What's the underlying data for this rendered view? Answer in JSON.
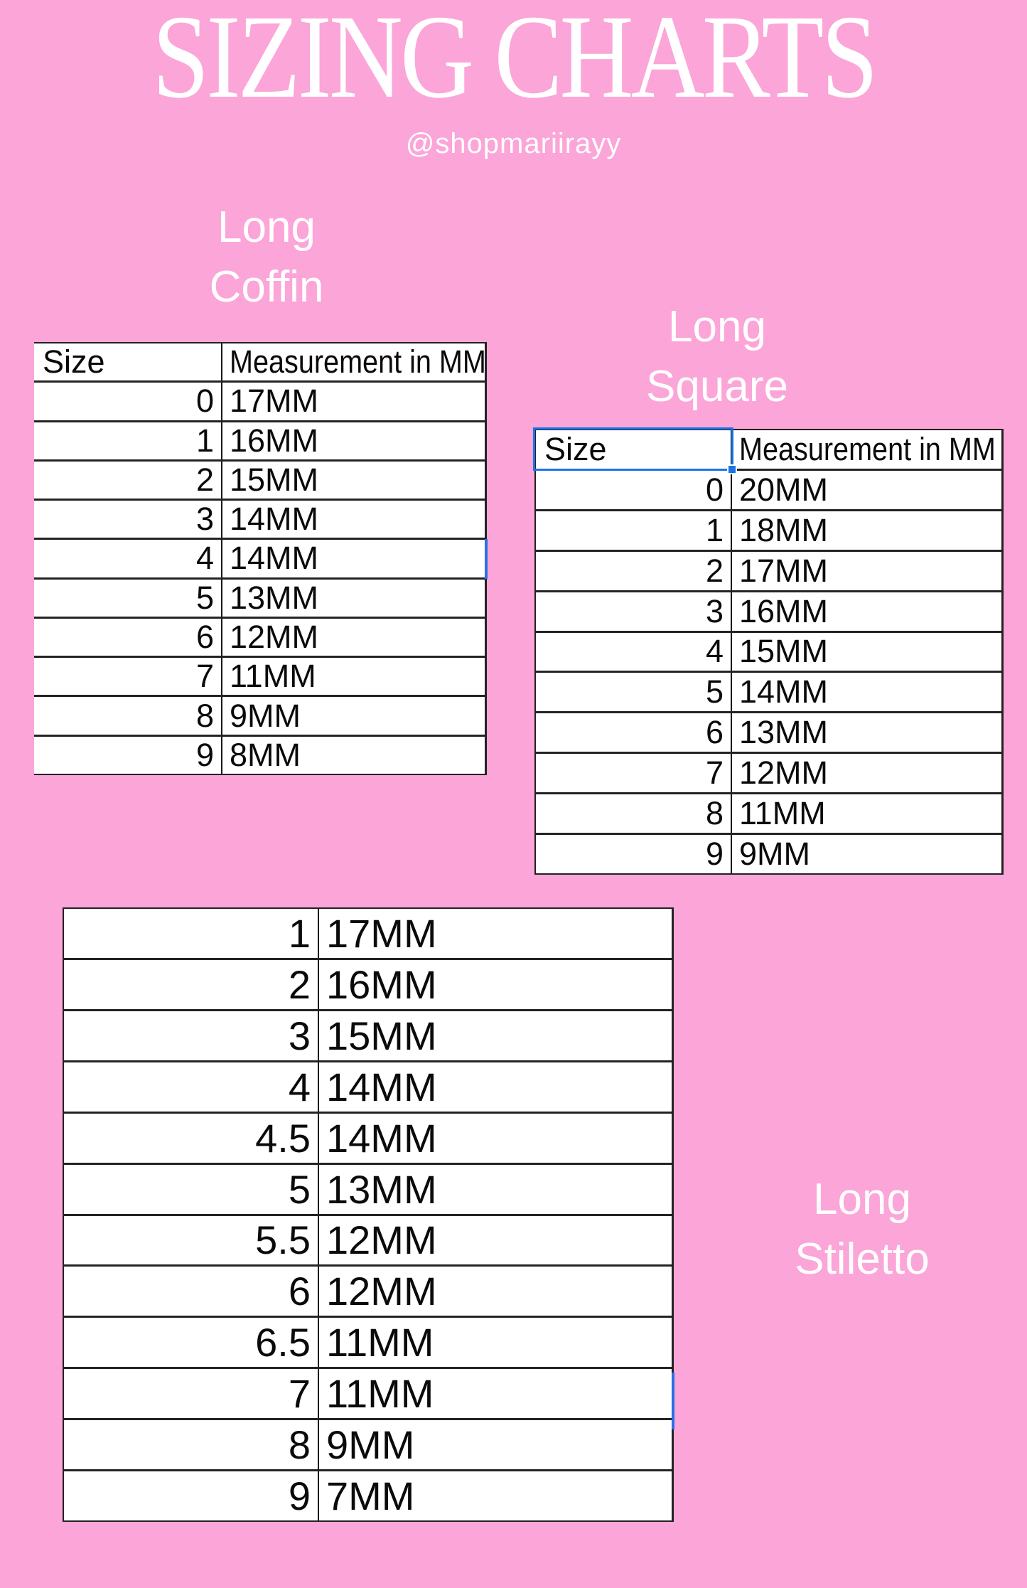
{
  "page": {
    "title": "SIZING CHARTS",
    "handle": "@shopmariirayy",
    "colors": {
      "background": "#fba5d8",
      "table_background": "#ffffff",
      "table_text": "#0a0a0a",
      "table_border": "#222222",
      "selection_blue": "#1a73e8",
      "text_white": "#ffffff"
    }
  },
  "tables": [
    {
      "id": "long-coffin",
      "title_lines": [
        "Long",
        "Coffin"
      ],
      "headers": [
        "Size",
        "Measurement in MM"
      ],
      "rows": [
        [
          "0",
          "17MM"
        ],
        [
          "1",
          "16MM"
        ],
        [
          "2",
          "15MM"
        ],
        [
          "3",
          "14MM"
        ],
        [
          "4",
          "14MM"
        ],
        [
          "5",
          "13MM"
        ],
        [
          "6",
          "12MM"
        ],
        [
          "7",
          "11MM"
        ],
        [
          "8",
          "9MM"
        ],
        [
          "9",
          "8MM"
        ]
      ]
    },
    {
      "id": "long-square",
      "title_lines": [
        "Long",
        "Square"
      ],
      "headers": [
        "Size",
        "Measurement in MM"
      ],
      "rows": [
        [
          "0",
          "20MM"
        ],
        [
          "1",
          "18MM"
        ],
        [
          "2",
          "17MM"
        ],
        [
          "3",
          "16MM"
        ],
        [
          "4",
          "15MM"
        ],
        [
          "5",
          "14MM"
        ],
        [
          "6",
          "13MM"
        ],
        [
          "7",
          "12MM"
        ],
        [
          "8",
          "11MM"
        ],
        [
          "9",
          "9MM"
        ]
      ]
    },
    {
      "id": "long-stiletto",
      "title_lines": [
        "Long",
        "Stiletto"
      ],
      "headers": null,
      "rows": [
        [
          "1",
          "17MM"
        ],
        [
          "2",
          "16MM"
        ],
        [
          "3",
          "15MM"
        ],
        [
          "4",
          "14MM"
        ],
        [
          "4.5",
          "14MM"
        ],
        [
          "5",
          "13MM"
        ],
        [
          "5.5",
          "12MM"
        ],
        [
          "6",
          "12MM"
        ],
        [
          "6.5",
          "11MM"
        ],
        [
          "7",
          "11MM"
        ],
        [
          "8",
          "9MM"
        ],
        [
          "9",
          "7MM"
        ]
      ]
    }
  ]
}
